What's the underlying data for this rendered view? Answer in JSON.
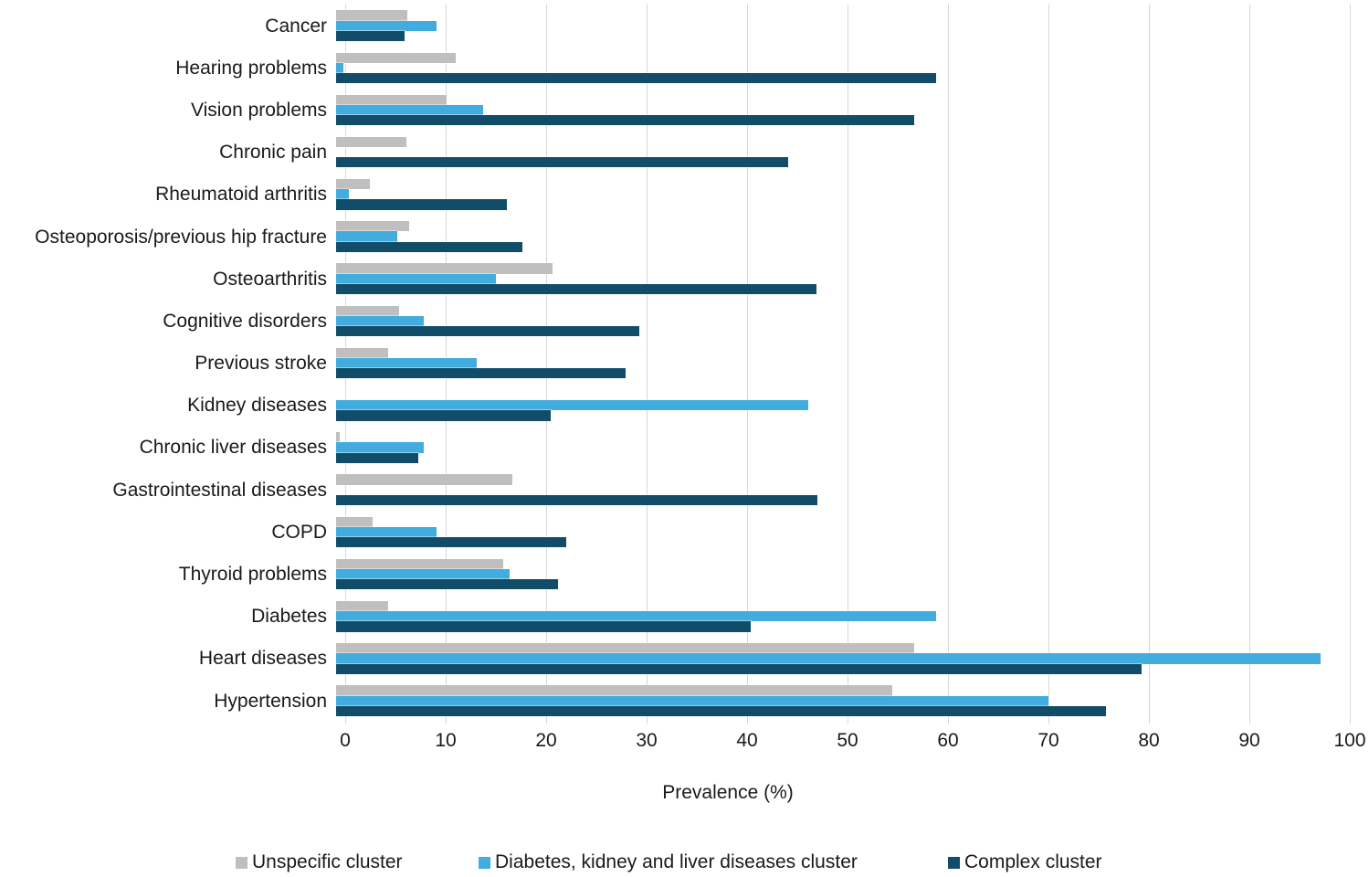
{
  "chart_data": {
    "type": "bar",
    "orientation": "horizontal",
    "title": "",
    "xlabel": "Prevalence (%)",
    "ylabel": "",
    "xlim": [
      0,
      100
    ],
    "xticks": [
      0,
      10,
      20,
      30,
      40,
      50,
      60,
      70,
      80,
      90,
      100
    ],
    "grid": "vertical",
    "gridline_color": "#D6D6D6",
    "legend_position": "bottom",
    "categories": [
      "Cancer",
      "Hearing problems",
      "Vision problems",
      "Chronic pain",
      "Rheumatoid arthritis",
      "Osteoporosis/previous hip fracture",
      "Osteoarthritis",
      "Cognitive disorders",
      "Previous stroke",
      "Kidney diseases",
      "Chronic liver diseases",
      "Gastrointestinal diseases",
      "COPD",
      "Thyroid problems",
      "Diabetes",
      "Heart diseases",
      "Hypertension"
    ],
    "series": [
      {
        "name": "Unspecific cluster",
        "color": "#BFBFBF",
        "values": [
          7.1,
          11.9,
          11.0,
          7.0,
          3.4,
          7.3,
          21.5,
          6.3,
          5.2,
          0,
          0.4,
          17.5,
          3.6,
          16.6,
          5.2,
          57.5,
          55.4
        ]
      },
      {
        "name": "Diabetes, kidney and liver diseases cluster",
        "color": "#42ACDF",
        "values": [
          10.0,
          0.7,
          14.6,
          0,
          1.3,
          6.1,
          15.9,
          8.7,
          14.0,
          47.0,
          8.7,
          0,
          10.0,
          17.3,
          59.7,
          98.0,
          70.9
        ]
      },
      {
        "name": "Complex cluster",
        "color": "#114D68",
        "values": [
          6.8,
          59.7,
          57.5,
          45.0,
          17.0,
          18.5,
          47.8,
          30.2,
          28.8,
          21.4,
          8.2,
          47.9,
          22.9,
          22.1,
          41.3,
          80.2,
          76.6
        ]
      }
    ]
  }
}
